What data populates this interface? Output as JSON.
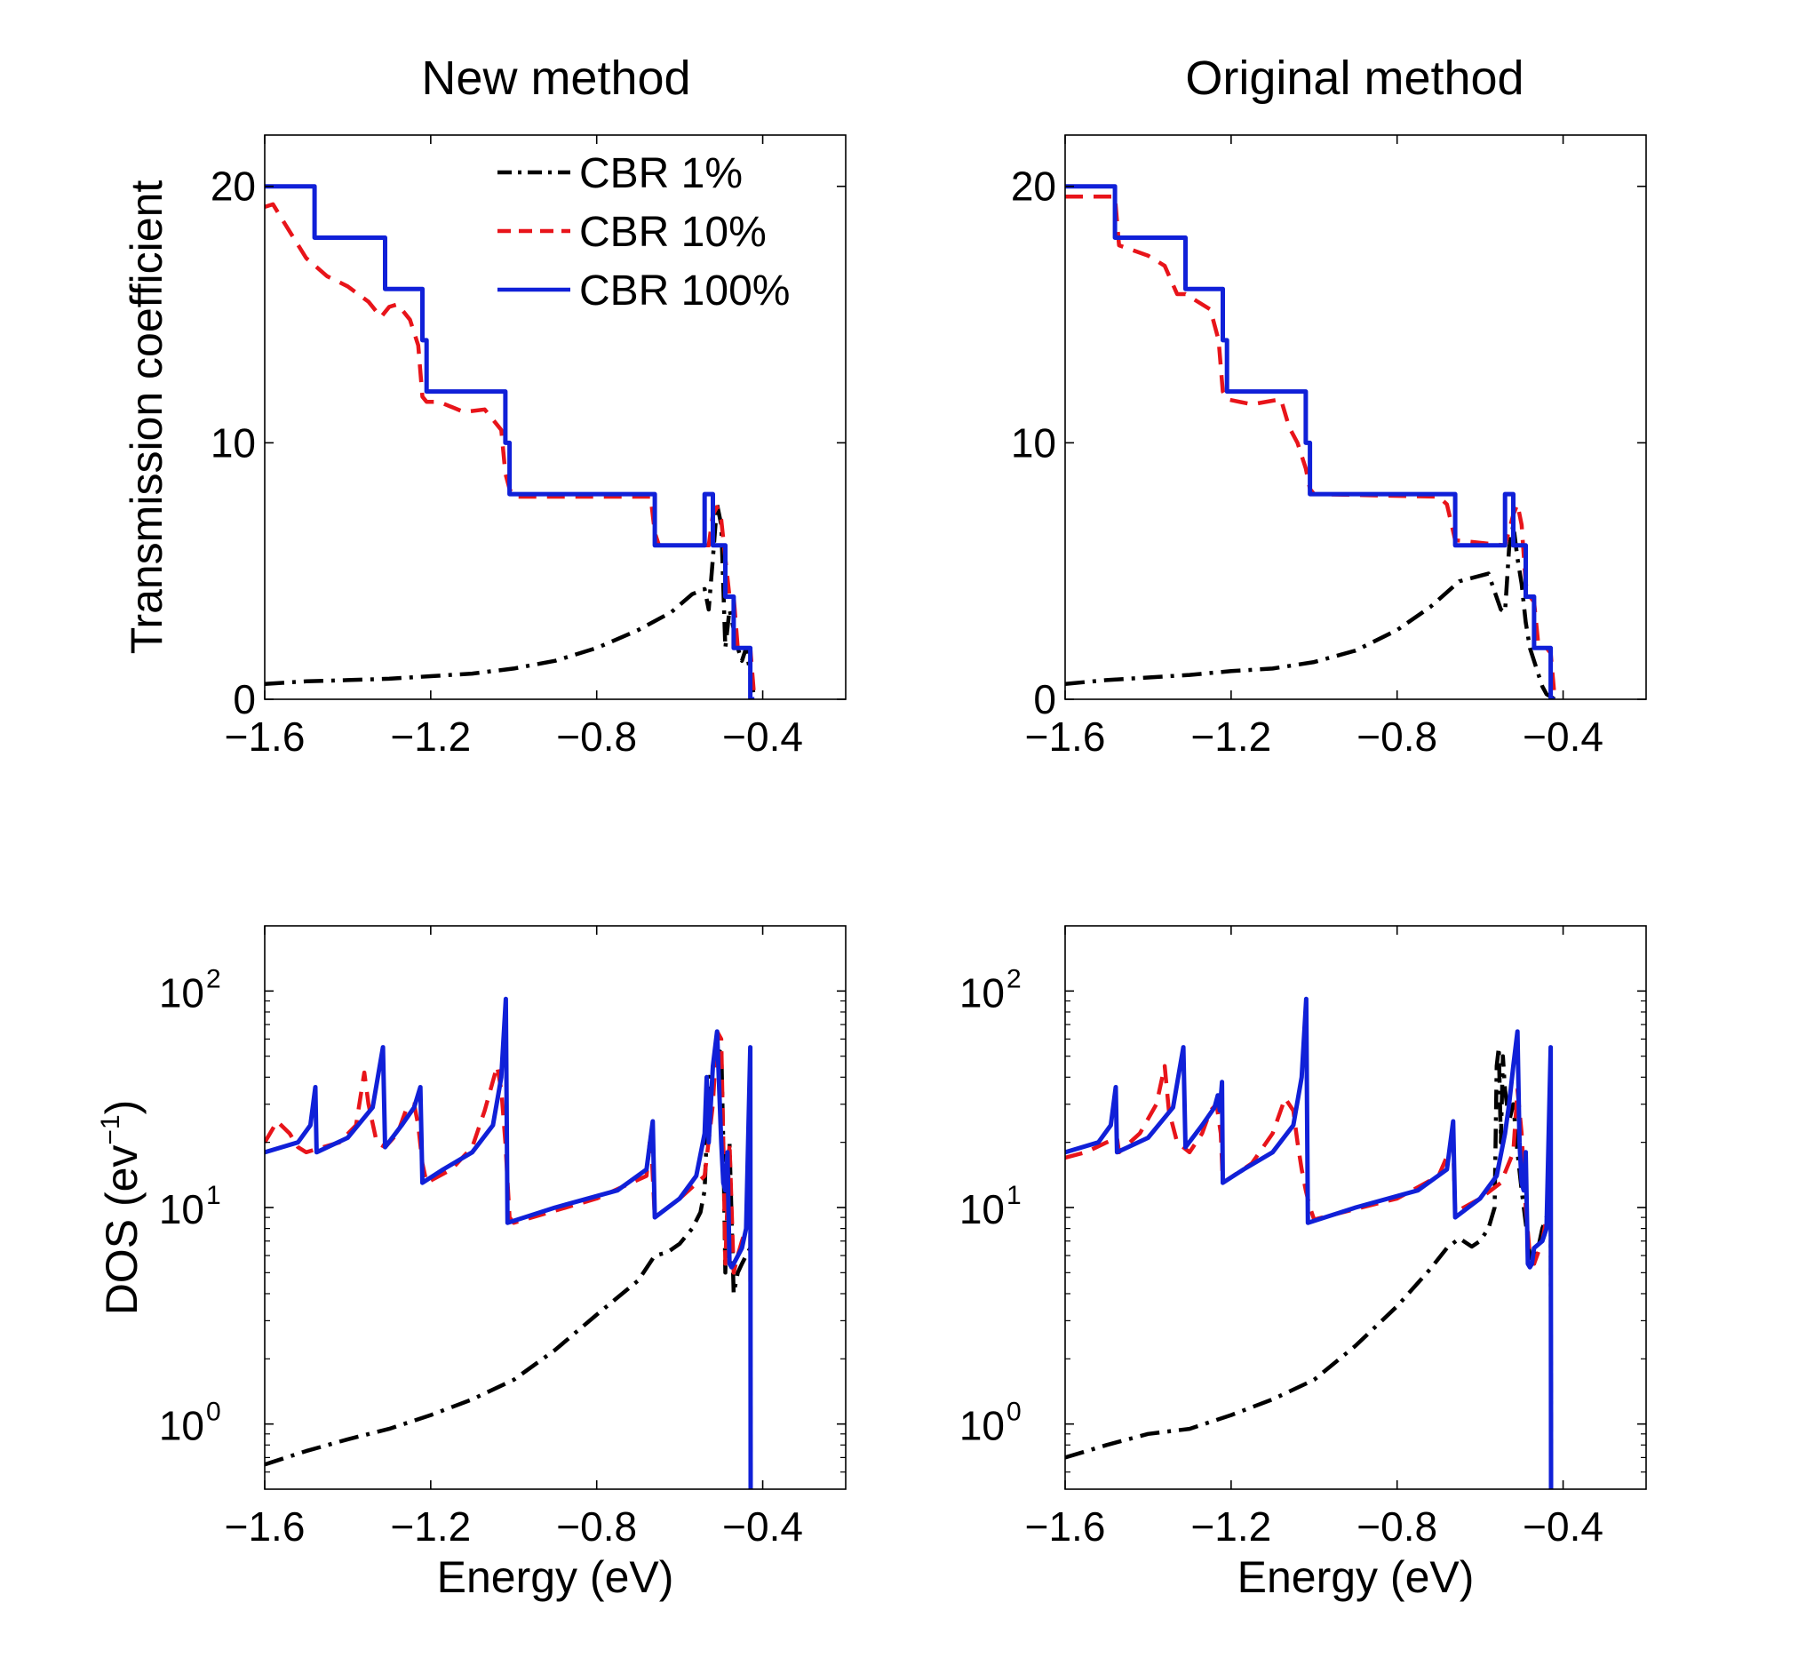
{
  "figure": {
    "column_titles": [
      "New method",
      "Original method"
    ]
  },
  "series_styles": [
    {
      "name": "CBR 1%",
      "color": "#000000",
      "dash": "dashdot"
    },
    {
      "name": "CBR 10%",
      "color": "#e8141a",
      "dash": "dashed"
    },
    {
      "name": "CBR 100%",
      "color": "#1020d8",
      "dash": "solid"
    }
  ],
  "chart_data": [
    {
      "type": "line",
      "title": "New method",
      "xlabel": "",
      "ylabel": "Transmission coefficient",
      "xlim": [
        -1.6,
        -0.2
      ],
      "ylim": [
        0,
        22
      ],
      "yscale": "linear",
      "xticks": [
        -1.6,
        -1.2,
        -0.8,
        -0.4
      ],
      "xtick_labels": [
        "−1.6",
        "−1.2",
        "−0.8",
        "−0.4"
      ],
      "yticks": [
        0,
        10,
        20
      ],
      "ytick_labels": [
        "0",
        "10",
        "20"
      ],
      "legend": {
        "position": "top-right",
        "entries": [
          "CBR 1%",
          "CBR 10%",
          "CBR 100%"
        ]
      },
      "series": [
        {
          "name": "CBR 1%",
          "x": [
            -1.6,
            -1.5,
            -1.4,
            -1.3,
            -1.2,
            -1.1,
            -1.0,
            -0.9,
            -0.8,
            -0.7,
            -0.62,
            -0.57,
            -0.54,
            -0.53,
            -0.52,
            -0.51,
            -0.5,
            -0.49,
            -0.48,
            -0.46,
            -0.45,
            -0.44,
            -0.43,
            -0.42
          ],
          "y": [
            0.6,
            0.7,
            0.75,
            0.8,
            0.9,
            1.0,
            1.2,
            1.5,
            2.0,
            2.7,
            3.4,
            4.1,
            4.3,
            3.5,
            5.5,
            7.6,
            6.8,
            2.0,
            3.5,
            2.0,
            1.5,
            2.0,
            1.0,
            0
          ]
        },
        {
          "name": "CBR 10%",
          "x": [
            -1.6,
            -1.58,
            -1.55,
            -1.5,
            -1.45,
            -1.4,
            -1.35,
            -1.32,
            -1.3,
            -1.28,
            -1.25,
            -1.23,
            -1.22,
            -1.21,
            -1.18,
            -1.12,
            -1.07,
            -1.03,
            -1.02,
            -1.01,
            -1.0,
            -0.8,
            -0.67,
            -0.66,
            -0.65,
            -0.53,
            -0.52,
            -0.51,
            -0.5,
            -0.49,
            -0.48,
            -0.47,
            -0.46,
            -0.45,
            -0.44,
            -0.43,
            -0.42
          ],
          "y": [
            19.2,
            19.3,
            18.5,
            17.2,
            16.5,
            16.1,
            15.5,
            14.9,
            15.3,
            15.4,
            14.8,
            13.8,
            11.8,
            11.6,
            11.6,
            11.2,
            11.3,
            10.5,
            8.8,
            8.2,
            7.9,
            7.9,
            7.9,
            6.5,
            6.0,
            6.0,
            7.2,
            7.5,
            7.0,
            5.5,
            4.0,
            4.0,
            2.0,
            2.0,
            2.0,
            2.0,
            0
          ]
        },
        {
          "name": "CBR 100%",
          "x": [
            -1.6,
            -1.48,
            -1.48,
            -1.31,
            -1.31,
            -1.22,
            -1.22,
            -1.21,
            -1.21,
            -1.02,
            -1.02,
            -1.01,
            -1.01,
            -0.66,
            -0.66,
            -0.54,
            -0.54,
            -0.52,
            -0.52,
            -0.49,
            -0.49,
            -0.47,
            -0.47,
            -0.43,
            -0.43,
            -0.42
          ],
          "y": [
            20,
            20,
            18,
            18,
            16,
            16,
            14,
            14,
            12,
            12,
            10,
            10,
            8,
            8,
            6,
            6,
            8,
            8,
            6,
            6,
            4,
            4,
            2,
            2,
            0,
            0
          ]
        }
      ]
    },
    {
      "type": "line",
      "title": "Original method",
      "xlabel": "",
      "ylabel": "",
      "xlim": [
        -1.6,
        -0.2
      ],
      "ylim": [
        0,
        22
      ],
      "yscale": "linear",
      "xticks": [
        -1.6,
        -1.2,
        -0.8,
        -0.4
      ],
      "xtick_labels": [
        "−1.6",
        "−1.2",
        "−0.8",
        "−0.4"
      ],
      "yticks": [
        0,
        10,
        20
      ],
      "ytick_labels": [
        "0",
        "10",
        "20"
      ],
      "series": [
        {
          "name": "CBR 1%",
          "x": [
            -1.6,
            -1.5,
            -1.4,
            -1.3,
            -1.2,
            -1.1,
            -1.0,
            -0.9,
            -0.8,
            -0.72,
            -0.65,
            -0.58,
            -0.55,
            -0.54,
            -0.53,
            -0.52,
            -0.51,
            -0.5,
            -0.49,
            -0.48,
            -0.46,
            -0.45,
            -0.44,
            -0.43,
            -0.42
          ],
          "y": [
            0.6,
            0.75,
            0.85,
            0.95,
            1.1,
            1.2,
            1.45,
            1.9,
            2.7,
            3.6,
            4.6,
            4.9,
            3.5,
            3.4,
            5.9,
            6.8,
            5.5,
            4.5,
            3.0,
            2.0,
            1.0,
            0.5,
            0.2,
            0.1,
            0
          ]
        },
        {
          "name": "CBR 10%",
          "x": [
            -1.6,
            -1.48,
            -1.47,
            -1.4,
            -1.36,
            -1.33,
            -1.31,
            -1.25,
            -1.23,
            -1.22,
            -1.21,
            -1.15,
            -1.08,
            -1.06,
            -1.04,
            -1.02,
            -1.01,
            -1.0,
            -0.7,
            -0.68,
            -0.66,
            -0.54,
            -0.52,
            -0.51,
            -0.5,
            -0.49,
            -0.48,
            -0.47,
            -0.46,
            -0.45,
            -0.44,
            -0.43,
            -0.42
          ],
          "y": [
            19.6,
            19.6,
            17.7,
            17.3,
            16.9,
            15.8,
            15.8,
            15.2,
            14.0,
            12.0,
            11.7,
            11.5,
            11.7,
            10.6,
            10.0,
            9.0,
            8.2,
            8.0,
            7.9,
            7.6,
            6.2,
            6.0,
            7.2,
            7.6,
            6.8,
            4.5,
            4.0,
            3.8,
            2.2,
            2.0,
            2.0,
            1.8,
            0
          ]
        },
        {
          "name": "CBR 100%",
          "x": [
            -1.6,
            -1.48,
            -1.48,
            -1.31,
            -1.31,
            -1.22,
            -1.22,
            -1.21,
            -1.21,
            -1.02,
            -1.02,
            -1.01,
            -1.01,
            -0.66,
            -0.66,
            -0.54,
            -0.54,
            -0.52,
            -0.52,
            -0.49,
            -0.49,
            -0.47,
            -0.47,
            -0.43,
            -0.43,
            -0.42
          ],
          "y": [
            20,
            20,
            18,
            18,
            16,
            16,
            14,
            14,
            12,
            12,
            10,
            10,
            8,
            8,
            6,
            6,
            8,
            8,
            6,
            6,
            4,
            4,
            2,
            2,
            0,
            0
          ]
        }
      ]
    },
    {
      "type": "line",
      "title": "",
      "xlabel": "Energy (eV)",
      "ylabel": "DOS (ev",
      "ylabel_superscript": "−1",
      "ylabel_suffix": ")",
      "xlim": [
        -1.6,
        -0.2
      ],
      "ylim": [
        0.5,
        200
      ],
      "yscale": "log",
      "xticks": [
        -1.6,
        -1.2,
        -0.8,
        -0.4
      ],
      "xtick_labels": [
        "−1.6",
        "−1.2",
        "−0.8",
        "−0.4"
      ],
      "yticks": [
        1,
        10,
        100
      ],
      "ytick_base": [
        "10",
        "10",
        "10"
      ],
      "ytick_exp": [
        "0",
        "1",
        "2"
      ],
      "series": [
        {
          "name": "CBR 1%",
          "x": [
            -1.6,
            -1.5,
            -1.4,
            -1.3,
            -1.2,
            -1.1,
            -1.0,
            -0.9,
            -0.8,
            -0.7,
            -0.66,
            -0.63,
            -0.6,
            -0.57,
            -0.55,
            -0.54,
            -0.53,
            -0.52,
            -0.51,
            -0.5,
            -0.495,
            -0.49,
            -0.48,
            -0.47,
            -0.46,
            -0.45,
            -0.44,
            -0.43
          ],
          "y": [
            0.65,
            0.75,
            0.85,
            0.95,
            1.1,
            1.3,
            1.6,
            2.2,
            3.2,
            4.6,
            6.0,
            6.2,
            6.8,
            8.0,
            9.5,
            12,
            38,
            45,
            50,
            55,
            20,
            5,
            20,
            4,
            5.0,
            5.5,
            6.0,
            6.5
          ]
        },
        {
          "name": "CBR 10%",
          "x": [
            -1.6,
            -1.57,
            -1.54,
            -1.52,
            -1.5,
            -1.48,
            -1.46,
            -1.42,
            -1.38,
            -1.36,
            -1.35,
            -1.33,
            -1.31,
            -1.28,
            -1.26,
            -1.24,
            -1.23,
            -1.22,
            -1.21,
            -1.15,
            -1.1,
            -1.07,
            -1.04,
            -1.03,
            -1.02,
            -1.01,
            -1.0,
            -0.8,
            -0.68,
            -0.67,
            -0.66,
            -0.6,
            -0.54,
            -0.52,
            -0.51,
            -0.5,
            -0.495,
            -0.49,
            -0.48,
            -0.47,
            -0.46,
            -0.45,
            -0.44,
            -0.43,
            -0.429,
            -0.428
          ],
          "y": [
            20,
            25,
            22,
            19,
            18,
            18.5,
            19,
            20,
            24,
            42,
            30,
            20,
            19,
            22,
            28,
            30,
            24,
            16,
            13,
            15,
            19,
            28,
            45,
            35,
            20,
            9,
            8.5,
            11,
            14,
            22,
            9,
            11,
            14,
            30,
            65,
            60,
            20,
            5.5,
            20,
            5,
            6,
            7,
            8,
            9,
            0.5,
            0.5
          ]
        },
        {
          "name": "CBR 100%",
          "x": [
            -1.6,
            -1.52,
            -1.49,
            -1.478,
            -1.475,
            -1.4,
            -1.34,
            -1.315,
            -1.31,
            -1.27,
            -1.24,
            -1.225,
            -1.22,
            -1.17,
            -1.1,
            -1.05,
            -1.03,
            -1.019,
            -1.015,
            -0.9,
            -0.75,
            -0.68,
            -0.665,
            -0.66,
            -0.6,
            -0.56,
            -0.54,
            -0.535,
            -0.53,
            -0.52,
            -0.51,
            -0.5,
            -0.495,
            -0.49,
            -0.485,
            -0.48,
            -0.475,
            -0.47,
            -0.45,
            -0.44,
            -0.43,
            -0.429,
            -0.428,
            -0.427
          ],
          "y": [
            18,
            20,
            24,
            36,
            18,
            21,
            29,
            55,
            19,
            24,
            29,
            36,
            13,
            15,
            18,
            24,
            40,
            92,
            8.5,
            10,
            12,
            15,
            25,
            9,
            11,
            14,
            22,
            40,
            20,
            45,
            65,
            20,
            13,
            12,
            18,
            5.5,
            5.3,
            5.5,
            6.5,
            8,
            55,
            0.5,
            0.5,
            0.5
          ]
        }
      ]
    },
    {
      "type": "line",
      "title": "",
      "xlabel": "Energy (eV)",
      "ylabel": "",
      "xlim": [
        -1.6,
        -0.2
      ],
      "ylim": [
        0.5,
        200
      ],
      "yscale": "log",
      "xticks": [
        -1.6,
        -1.2,
        -0.8,
        -0.4
      ],
      "xtick_labels": [
        "−1.6",
        "−1.2",
        "−0.8",
        "−0.4"
      ],
      "yticks": [
        1,
        10,
        100
      ],
      "ytick_base": [
        "10",
        "10",
        "10"
      ],
      "ytick_exp": [
        "0",
        "1",
        "2"
      ],
      "series": [
        {
          "name": "CBR 1%",
          "x": [
            -1.6,
            -1.5,
            -1.4,
            -1.3,
            -1.2,
            -1.1,
            -1.0,
            -0.9,
            -0.8,
            -0.72,
            -0.68,
            -0.65,
            -0.62,
            -0.6,
            -0.58,
            -0.565,
            -0.56,
            -0.555,
            -0.55,
            -0.545,
            -0.54,
            -0.53,
            -0.52,
            -0.51,
            -0.5,
            -0.49,
            -0.48,
            -0.47,
            -0.46,
            -0.45,
            -0.44,
            -0.43,
            -0.429
          ],
          "y": [
            0.7,
            0.8,
            0.9,
            0.95,
            1.1,
            1.3,
            1.6,
            2.3,
            3.5,
            5.2,
            6.5,
            7.2,
            6.6,
            7.0,
            8.0,
            10,
            45,
            55,
            20,
            50,
            35,
            25,
            30,
            18,
            12,
            8.5,
            6.0,
            5.5,
            6.5,
            8.0,
            9.0,
            9.5,
            0.5
          ]
        },
        {
          "name": "CBR 10%",
          "x": [
            -1.6,
            -1.55,
            -1.5,
            -1.475,
            -1.47,
            -1.42,
            -1.38,
            -1.36,
            -1.35,
            -1.33,
            -1.3,
            -1.27,
            -1.25,
            -1.235,
            -1.225,
            -1.22,
            -1.15,
            -1.1,
            -1.07,
            -1.05,
            -1.04,
            -1.03,
            -1.02,
            -1.01,
            -1.0,
            -0.8,
            -0.7,
            -0.665,
            -0.66,
            -0.6,
            -0.55,
            -0.52,
            -0.51,
            -0.5,
            -0.49,
            -0.48,
            -0.47,
            -0.45,
            -0.44,
            -0.43,
            -0.429,
            -0.428
          ],
          "y": [
            17,
            18,
            20,
            21,
            18,
            22,
            30,
            45,
            28,
            20,
            18,
            22,
            28,
            30,
            22,
            13,
            16,
            22,
            32,
            28,
            20,
            15,
            12,
            10,
            8.8,
            11,
            14,
            20,
            9.5,
            11,
            13,
            18,
            35,
            22,
            10,
            6,
            5.5,
            7,
            9,
            11,
            0.5,
            0.5
          ]
        },
        {
          "name": "CBR 100%",
          "x": [
            -1.6,
            -1.52,
            -1.49,
            -1.478,
            -1.475,
            -1.4,
            -1.34,
            -1.315,
            -1.31,
            -1.27,
            -1.24,
            -1.232,
            -1.227,
            -1.222,
            -1.22,
            -1.17,
            -1.1,
            -1.05,
            -1.03,
            -1.019,
            -1.015,
            -0.9,
            -0.75,
            -0.68,
            -0.665,
            -0.66,
            -0.6,
            -0.56,
            -0.54,
            -0.53,
            -0.52,
            -0.51,
            -0.505,
            -0.5,
            -0.495,
            -0.49,
            -0.485,
            -0.48,
            -0.475,
            -0.47,
            -0.45,
            -0.44,
            -0.43,
            -0.429,
            -0.428,
            -0.427
          ],
          "y": [
            18,
            20,
            24,
            36,
            18,
            21,
            29,
            55,
            19,
            24,
            29,
            33,
            28,
            38,
            13,
            15,
            18,
            24,
            40,
            92,
            8.5,
            10,
            12,
            15,
            25,
            9,
            11,
            14,
            22,
            30,
            45,
            65,
            20,
            13,
            12,
            18,
            5.5,
            5.3,
            5.5,
            6.5,
            7,
            8,
            55,
            0.5,
            0.5,
            0.5
          ]
        }
      ]
    }
  ]
}
